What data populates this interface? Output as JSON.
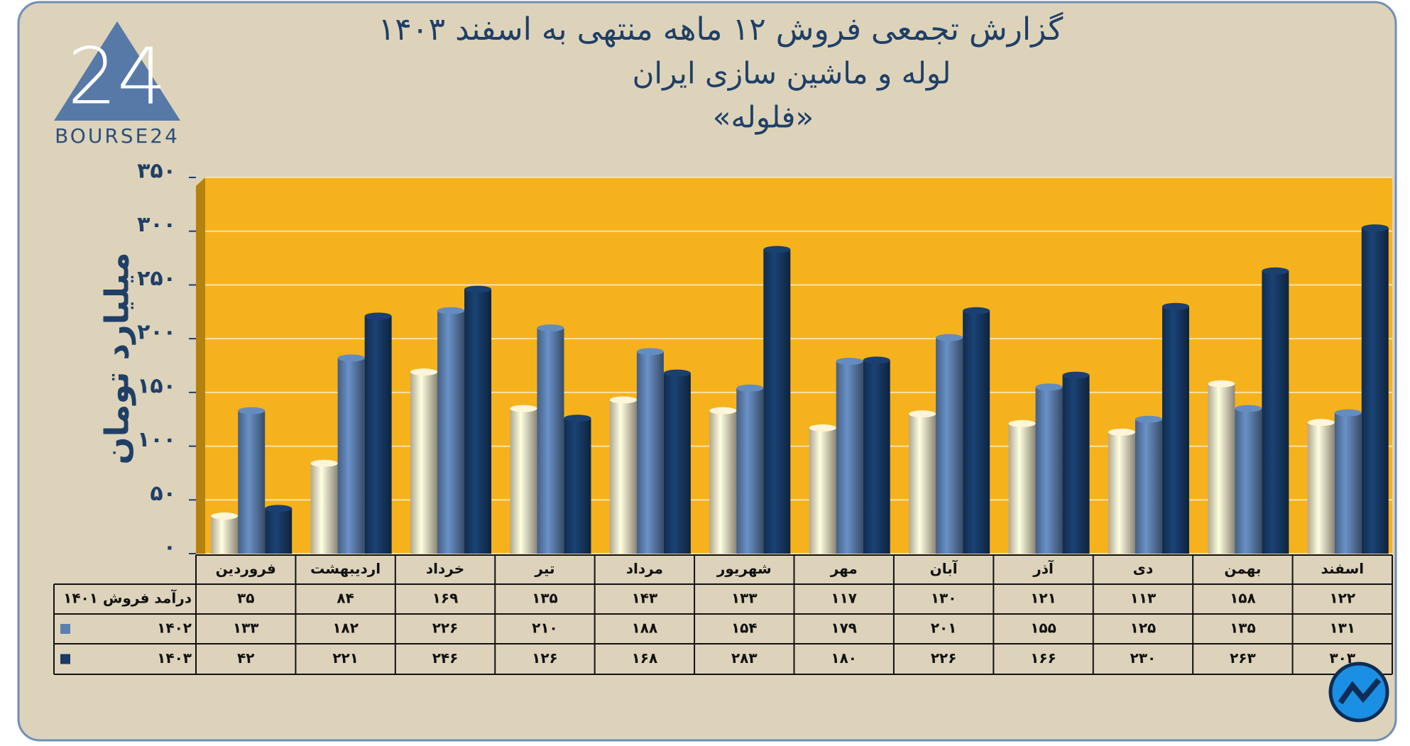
{
  "logo": {
    "mark": "24",
    "text": "BOURSE24"
  },
  "chart_data": {
    "type": "bar",
    "title": "گزارش تجمعی فروش ۱۲ ماهه منتهی به اسفند ۱۴۰۳",
    "subtitle": "لوله و ماشین سازی ایران",
    "subtitle2": "«فلوله»",
    "y_label": "میلیارد تومان",
    "categories": [
      "فروردین",
      "اردیبهشت",
      "خرداد",
      "تیر",
      "مرداد",
      "شهریور",
      "مهر",
      "آبان",
      "آذر",
      "دی",
      "بهمن",
      "اسفند"
    ],
    "series": [
      {
        "name": "درآمد فروش ۱۴۰۱",
        "color": "#e9dfc4",
        "swatch": false,
        "values": [
          35,
          84,
          169,
          135,
          143,
          133,
          117,
          130,
          121,
          113,
          158,
          122
        ],
        "value_labels": [
          "۳۵",
          "۸۴",
          "۱۶۹",
          "۱۳۵",
          "۱۴۳",
          "۱۳۳",
          "۱۱۷",
          "۱۳۰",
          "۱۲۱",
          "۱۱۳",
          "۱۵۸",
          "۱۲۲"
        ]
      },
      {
        "name": "۱۴۰۲",
        "color": "#5b7fae",
        "swatch": true,
        "values": [
          133,
          182,
          226,
          210,
          188,
          154,
          179,
          201,
          155,
          125,
          135,
          131
        ],
        "value_labels": [
          "۱۳۳",
          "۱۸۲",
          "۲۲۶",
          "۲۱۰",
          "۱۸۸",
          "۱۵۴",
          "۱۷۹",
          "۲۰۱",
          "۱۵۵",
          "۱۲۵",
          "۱۳۵",
          "۱۳۱"
        ]
      },
      {
        "name": "۱۴۰۳",
        "color": "#173a66",
        "swatch": true,
        "values": [
          42,
          221,
          246,
          126,
          168,
          283,
          180,
          226,
          166,
          230,
          263,
          303
        ],
        "value_labels": [
          "۴۲",
          "۲۲۱",
          "۲۴۶",
          "۱۲۶",
          "۱۶۸",
          "۲۸۳",
          "۱۸۰",
          "۲۲۶",
          "۱۶۶",
          "۲۳۰",
          "۲۶۳",
          "۳۰۳"
        ]
      }
    ],
    "ylim": [
      0,
      350
    ],
    "yticks": [
      {
        "value": 0,
        "label": "۰"
      },
      {
        "value": 50,
        "label": "۵۰"
      },
      {
        "value": 100,
        "label": "۱۰۰"
      },
      {
        "value": 150,
        "label": "۱۵۰"
      },
      {
        "value": 200,
        "label": "۲۰۰"
      },
      {
        "value": 250,
        "label": "۲۵۰"
      },
      {
        "value": 300,
        "label": "۳۰۰"
      },
      {
        "value": 350,
        "label": "۳۵۰"
      }
    ],
    "grid": true
  }
}
